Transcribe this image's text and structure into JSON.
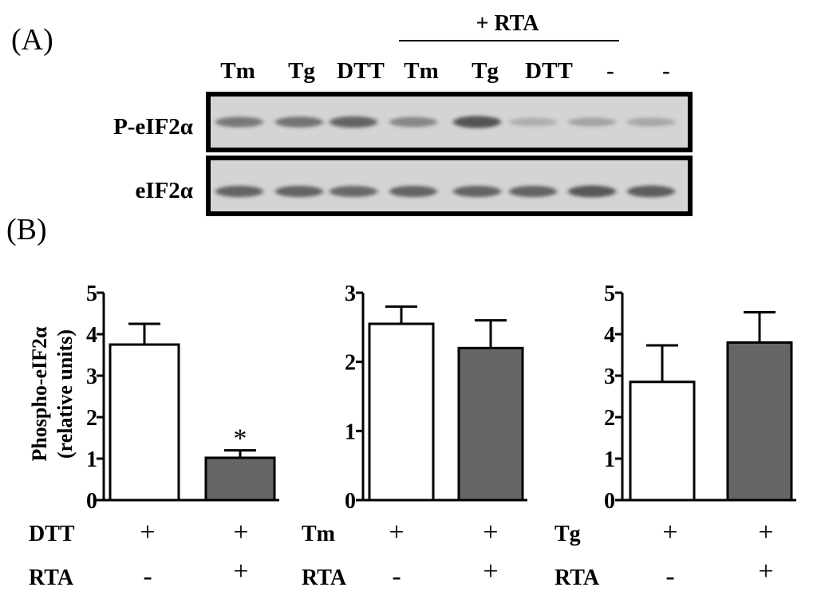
{
  "panel_a": {
    "label": "(A)",
    "rta_header": "+ RTA",
    "lanes": [
      "Tm",
      "Tg",
      "DTT",
      "Tm",
      "Tg",
      "DTT",
      "-",
      "-"
    ],
    "rows": [
      {
        "label": "P-eIF2α",
        "band_intensity": [
          0.55,
          0.6,
          0.72,
          0.45,
          0.85,
          0.12,
          0.2,
          0.18
        ]
      },
      {
        "label": "eIF2α",
        "band_intensity": [
          0.72,
          0.72,
          0.68,
          0.72,
          0.72,
          0.72,
          0.82,
          0.78
        ]
      }
    ]
  },
  "panel_b_label": "(B)",
  "colors": {
    "treated_bar": "#666666",
    "control_bar": "#ffffff",
    "axis": "#000000",
    "band": "#3a3a3a",
    "blot_bg": "#d4d4d4"
  },
  "chart_data": [
    {
      "type": "bar",
      "ylabel": [
        "Phospho-eIF2α",
        "(relative units)"
      ],
      "ylim": [
        0,
        5
      ],
      "yticks": [
        0,
        1,
        2,
        3,
        4,
        5
      ],
      "categories": [
        "DTT",
        "DTT + RTA"
      ],
      "values": [
        3.75,
        1.02
      ],
      "errors": [
        0.5,
        0.18
      ],
      "annotations": [
        "",
        "*"
      ],
      "conditions": [
        {
          "label": "DTT",
          "marks": [
            "+",
            "+"
          ]
        },
        {
          "label": "RTA",
          "marks": [
            "-",
            "+"
          ]
        }
      ]
    },
    {
      "type": "bar",
      "ylabel": [],
      "ylim": [
        0,
        3
      ],
      "yticks": [
        0,
        1,
        2,
        3
      ],
      "categories": [
        "Tm",
        "Tm + RTA"
      ],
      "values": [
        2.55,
        2.2
      ],
      "errors": [
        0.25,
        0.4
      ],
      "annotations": [
        "",
        ""
      ],
      "conditions": [
        {
          "label": "Tm",
          "marks": [
            "+",
            "+"
          ]
        },
        {
          "label": "RTA",
          "marks": [
            "-",
            "+"
          ]
        }
      ]
    },
    {
      "type": "bar",
      "ylabel": [],
      "ylim": [
        0,
        5
      ],
      "yticks": [
        0,
        1,
        2,
        3,
        4,
        5
      ],
      "categories": [
        "Tg",
        "Tg + RTA"
      ],
      "values": [
        2.85,
        3.8
      ],
      "errors": [
        0.88,
        0.73
      ],
      "annotations": [
        "",
        ""
      ],
      "conditions": [
        {
          "label": "Tg",
          "marks": [
            "+",
            "+"
          ]
        },
        {
          "label": "RTA",
          "marks": [
            "-",
            "+"
          ]
        }
      ]
    }
  ]
}
